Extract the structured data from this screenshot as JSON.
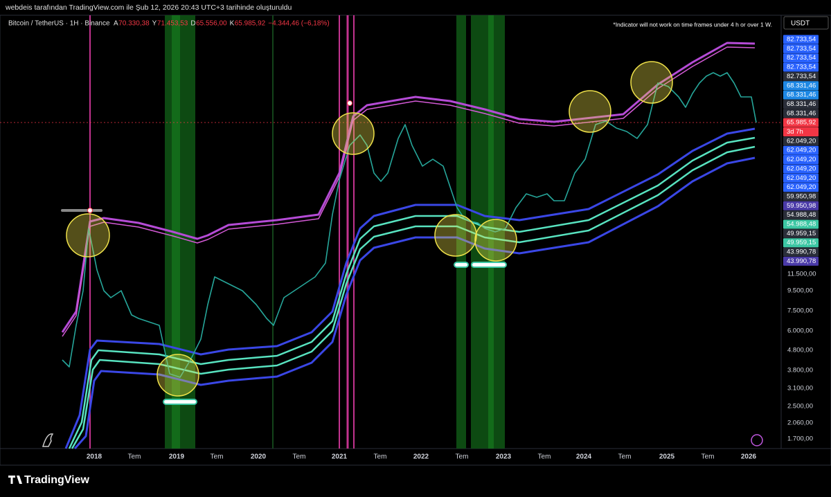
{
  "header": {
    "text": "webdeis tarafından TradingView.com ile Şub 12, 2026 20:43 UTC+3 tarihinde oluşturuldu"
  },
  "legend": {
    "title": "Bitcoin / TetherUS · 1H · Binance",
    "items": [
      {
        "k": "A",
        "v": "70.330,38"
      },
      {
        "k": "Y",
        "v": "71.453,53"
      },
      {
        "k": "D",
        "v": "65.556,00"
      },
      {
        "k": "K",
        "v": "65.985,92"
      }
    ],
    "change": "−4.344,46 (−6,18%)"
  },
  "note": "*Indicator will not work on time frames under 4 h or over 1 W.",
  "currency": "USDT",
  "price_markers": [
    {
      "label": "82.733,54",
      "color": "#2962ff"
    },
    {
      "label": "82.733,54",
      "color": "#2962ff"
    },
    {
      "label": "82.733,54",
      "color": "#2962ff"
    },
    {
      "label": "82.733,54",
      "color": "#2962ff"
    },
    {
      "label": "82.733,54",
      "color": "#2a2e39"
    },
    {
      "label": "68.331,46",
      "color": "#1e88e5"
    },
    {
      "label": "68.331,46",
      "color": "#1e88e5"
    },
    {
      "label": "68.331,46",
      "color": "#2a2e39"
    },
    {
      "label": "68.331,46",
      "color": "#2a2e39"
    },
    {
      "label": "65.985,92",
      "color": "#f23645"
    },
    {
      "label": "3d 7h",
      "color": "#f23645"
    },
    {
      "label": "62.049,20",
      "color": "#2a2e39"
    },
    {
      "label": "62.049,20",
      "color": "#2962ff"
    },
    {
      "label": "62.049,20",
      "color": "#2962ff"
    },
    {
      "label": "62.049,20",
      "color": "#2962ff"
    },
    {
      "label": "62.049,20",
      "color": "#2962ff"
    },
    {
      "label": "62.049,20",
      "color": "#2962ff"
    },
    {
      "label": "59.950,98",
      "color": "#2a2e39"
    },
    {
      "label": "59.950,98",
      "color": "#4a3aa8"
    },
    {
      "label": "54.988,48",
      "color": "#2a2e39"
    },
    {
      "label": "54.988,48",
      "color": "#3cc7a4"
    },
    {
      "label": "49.959,15",
      "color": "#2a2e39"
    },
    {
      "label": "49.959,15",
      "color": "#3cc7a4"
    },
    {
      "label": "43.990,78",
      "color": "#2a2e39"
    },
    {
      "label": "43.990,78",
      "color": "#4a3aa8"
    }
  ],
  "price_ticks": [
    "11.500,00",
    "9.500,00",
    "7.500,00",
    "6.000,00",
    "4.800,00",
    "3.800,00",
    "3.100,00",
    "2.500,00",
    "2.060,00",
    "1.700,00"
  ],
  "time_ticks": [
    "2018",
    "Tem",
    "2019",
    "Tem",
    "2020",
    "Tem",
    "2021",
    "Tem",
    "2022",
    "Tem",
    "2023",
    "Tem",
    "2024",
    "Tem",
    "2025",
    "Tem",
    "2026"
  ],
  "footer": {
    "brand": "TradingView"
  }
}
